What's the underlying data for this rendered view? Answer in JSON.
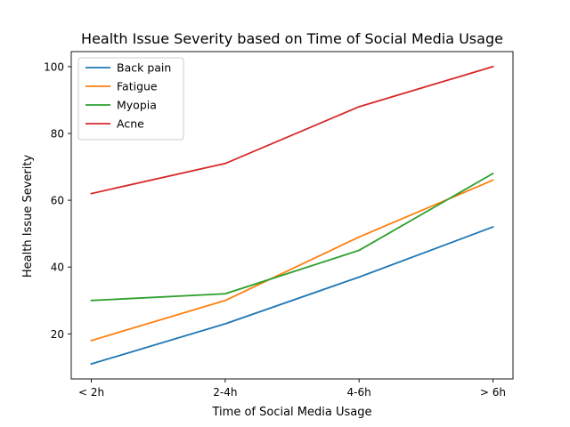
{
  "chart_data": {
    "type": "line",
    "title": "Health Issue Severity based on Time of Social Media Usage",
    "xlabel": "Time of Social Media Usage",
    "ylabel": "Health Issue Severity",
    "categories": [
      "< 2h",
      "2-4h",
      "4-6h",
      "> 6h"
    ],
    "ylim": [
      6.5,
      104.5
    ],
    "yticks": [
      20,
      40,
      60,
      80,
      100
    ],
    "grid": false,
    "legend_position": "top-left",
    "series": [
      {
        "name": "Back pain",
        "color": "#1f77b4",
        "values": [
          11,
          23,
          37,
          52
        ]
      },
      {
        "name": "Fatigue",
        "color": "#ff7f0e",
        "values": [
          18,
          30,
          49,
          66
        ]
      },
      {
        "name": "Myopia",
        "color": "#2ca02c",
        "values": [
          30,
          32,
          45,
          68
        ]
      },
      {
        "name": "Acne",
        "color": "#d62728",
        "values": [
          62,
          71,
          88,
          100
        ]
      }
    ]
  }
}
